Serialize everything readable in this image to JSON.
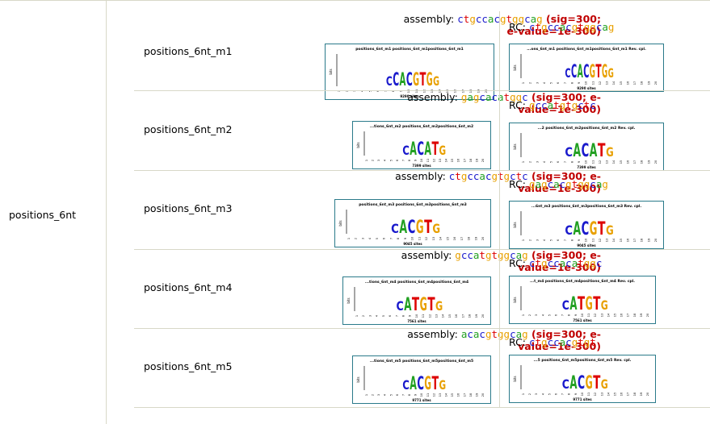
{
  "group_label": "positions_6nt",
  "labels": {
    "assembly": "assembly:",
    "rc": "RC:",
    "sig_open": "(sig=300;",
    "evalue": "e-value=1e-300)",
    "sig_split_a": "(sig=300; e-",
    "sig_split_b": "value=1e-300)"
  },
  "motifs": [
    {
      "name": "positions_6nt_m1",
      "assembly_seq": "ctgccacgtggcag",
      "rc_seq": "ctgccacgtggcag",
      "fwd_logo_title": "positions_6nt_m1 positions_6nt_m1positions_6nt_m1",
      "rc_logo_title": "...ons_6nt_m1 positions_6nt_m1positions_6nt_m1 Rev. cpl.",
      "fwd_sites": "9290 sites",
      "rc_sites": "9290 sites",
      "logo_letters": "CCACGTGG"
    },
    {
      "name": "positions_6nt_m2",
      "assembly_seq": "gagcacatggc",
      "rc_seq": "gccatgtgctc",
      "fwd_logo_title": "...tions_6nt_m2 positions_6nt_m2positions_6nt_m2",
      "rc_logo_title": "...2 positions_6nt_m2positions_6nt_m2 Rev. cpl.",
      "fwd_sites": "7399 sites",
      "rc_sites": "7399 sites",
      "logo_letters": "CACATG"
    },
    {
      "name": "positions_6nt_m3",
      "assembly_seq": "ctgccacgtgctc",
      "rc_seq": "gagcacgtggcag",
      "fwd_logo_title": "positions_6nt_m3 positions_6nt_m3positions_6nt_m3",
      "rc_logo_title": "...6nt_m3 positions_6nt_m3positions_6nt_m3 Rev. cpl.",
      "fwd_sites": "9045 sites",
      "rc_sites": "9045 sites",
      "logo_letters": "CACGTG"
    },
    {
      "name": "positions_6nt_m4",
      "assembly_seq": "gccatgtggcag",
      "rc_seq": "ctgccacatggc",
      "fwd_logo_title": "...tions_6nt_m4 positions_6nt_m4positions_6nt_m4",
      "rc_logo_title": "...t_m4 positions_6nt_m4positions_6nt_m4 Rev. cpl.",
      "fwd_sites": "7561 sites",
      "rc_sites": "7561 sites",
      "logo_letters": "CATGTG"
    },
    {
      "name": "positions_6nt_m5",
      "assembly_seq": "acacgtggcag",
      "rc_seq": "ctgccacgtgt",
      "fwd_logo_title": "...tions_6nt_m5 positions_6nt_m5positions_6nt_m5",
      "rc_logo_title": "...5 positions_6nt_m5positions_6nt_m5 Rev. cpl.",
      "fwd_sites": "9771 sites",
      "rc_sites": "9771 sites",
      "logo_letters": "CACGTG"
    }
  ],
  "colors": {
    "a": "#22a022",
    "c": "#1a1acc",
    "g": "#e8a000",
    "t": "#dd0000",
    "sig": "#c00000",
    "logo_border": "#2a7a8a"
  }
}
